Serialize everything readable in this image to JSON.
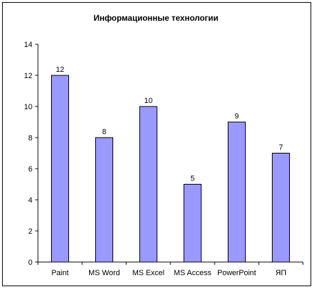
{
  "chart_data": {
    "type": "bar",
    "title": "Информационные технологии",
    "ylabel": "",
    "xlabel": "",
    "categories": [
      "Paint",
      "MS Word",
      "MS Excel",
      "MS Access",
      "PowerPoint",
      "ЯП"
    ],
    "values": [
      12,
      8,
      10,
      5,
      9,
      7
    ],
    "ylim": [
      0,
      14
    ],
    "yticks": [
      0,
      2,
      4,
      6,
      8,
      10,
      12,
      14
    ],
    "grid": false,
    "legend": "none",
    "bar_color": "#9999ff",
    "bar_border_color": "#000000"
  }
}
